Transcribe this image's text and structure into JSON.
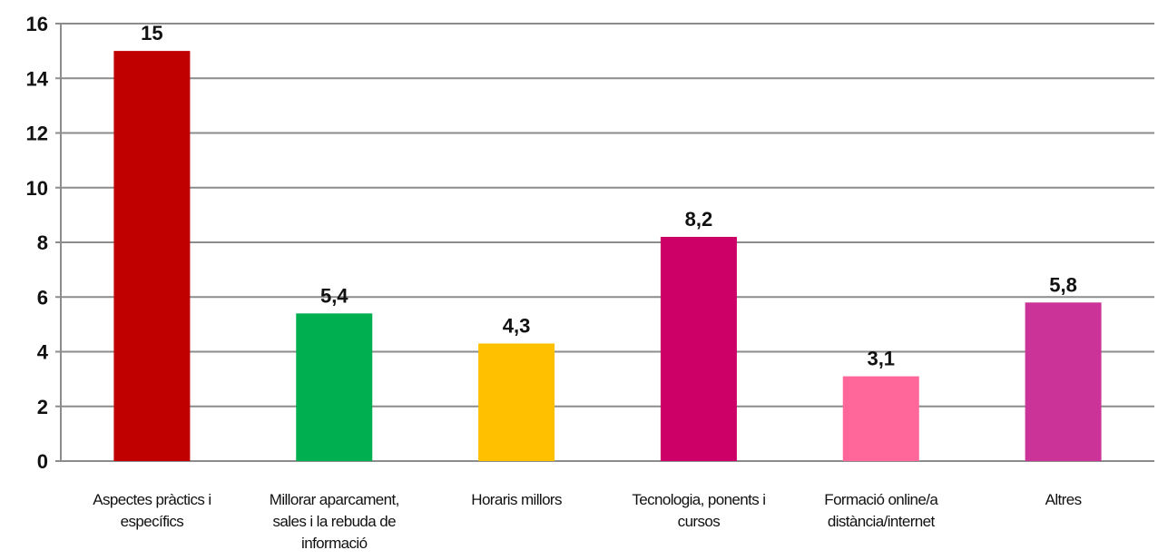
{
  "chart_data": {
    "type": "bar",
    "title": "",
    "xlabel": "",
    "ylabel": "",
    "ylim": [
      0,
      16
    ],
    "yticks": [
      0,
      2,
      4,
      6,
      8,
      10,
      12,
      14,
      16
    ],
    "grid": true,
    "legend": "none",
    "categories": [
      [
        "Aspectes pràctics i",
        "específics"
      ],
      [
        "Millorar aparcament,",
        "sales i la rebuda de",
        "informació"
      ],
      [
        "Horaris millors"
      ],
      [
        "Tecnologia, ponents i",
        "cursos"
      ],
      [
        "Formació online/a",
        "distància/internet"
      ],
      [
        "Altres"
      ]
    ],
    "values": [
      15,
      5.4,
      4.3,
      8.2,
      3.1,
      5.8
    ],
    "value_labels": [
      "15",
      "5,4",
      "4,3",
      "8,2",
      "3,1",
      "5,8"
    ],
    "colors": [
      "#c00000",
      "#00b050",
      "#ffc000",
      "#cc0066",
      "#ff6699",
      "#cc3399"
    ]
  }
}
